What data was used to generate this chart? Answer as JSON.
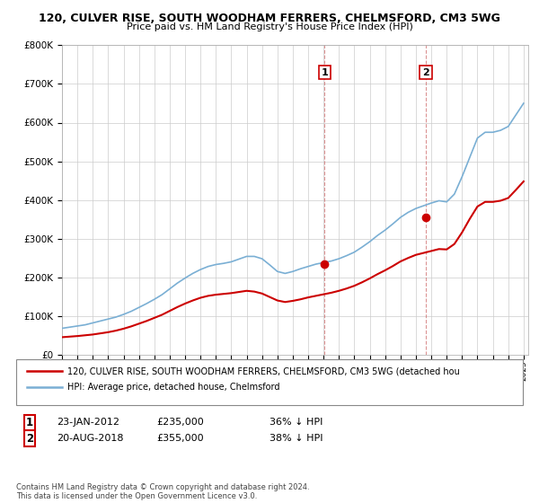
{
  "title": "120, CULVER RISE, SOUTH WOODHAM FERRERS, CHELMSFORD, CM3 5WG",
  "subtitle": "Price paid vs. HM Land Registry's House Price Index (HPI)",
  "legend_line1": "120, CULVER RISE, SOUTH WOODHAM FERRERS, CHELMSFORD, CM3 5WG (detached hou",
  "legend_line2": "HPI: Average price, detached house, Chelmsford",
  "annotation1_label": "1",
  "annotation1_date": "23-JAN-2012",
  "annotation1_price": "£235,000",
  "annotation1_hpi": "36% ↓ HPI",
  "annotation2_label": "2",
  "annotation2_date": "20-AUG-2018",
  "annotation2_price": "£355,000",
  "annotation2_hpi": "38% ↓ HPI",
  "footnote": "Contains HM Land Registry data © Crown copyright and database right 2024.\nThis data is licensed under the Open Government Licence v3.0.",
  "ylim": [
    0,
    800000
  ],
  "yticks": [
    0,
    100000,
    200000,
    300000,
    400000,
    500000,
    600000,
    700000,
    800000
  ],
  "bg_color": "#ffffff",
  "plot_bg_color": "#ffffff",
  "grid_color": "#cccccc",
  "red_color": "#cc0000",
  "blue_color": "#7aafd4",
  "hpi_years": [
    1995.0,
    1995.5,
    1996.0,
    1996.5,
    1997.0,
    1997.5,
    1998.0,
    1998.5,
    1999.0,
    1999.5,
    2000.0,
    2000.5,
    2001.0,
    2001.5,
    2002.0,
    2002.5,
    2003.0,
    2003.5,
    2004.0,
    2004.5,
    2005.0,
    2005.5,
    2006.0,
    2006.5,
    2007.0,
    2007.5,
    2008.0,
    2008.5,
    2009.0,
    2009.5,
    2010.0,
    2010.5,
    2011.0,
    2011.5,
    2012.0,
    2012.5,
    2013.0,
    2013.5,
    2014.0,
    2014.5,
    2015.0,
    2015.5,
    2016.0,
    2016.5,
    2017.0,
    2017.5,
    2018.0,
    2018.5,
    2019.0,
    2019.5,
    2020.0,
    2020.5,
    2021.0,
    2021.5,
    2022.0,
    2022.5,
    2023.0,
    2023.5,
    2024.0,
    2024.5,
    2025.0
  ],
  "hpi_values": [
    68000,
    71000,
    74000,
    77000,
    82000,
    87000,
    92000,
    97000,
    104000,
    112000,
    122000,
    132000,
    143000,
    155000,
    170000,
    185000,
    198000,
    210000,
    220000,
    228000,
    233000,
    236000,
    240000,
    247000,
    254000,
    254000,
    248000,
    232000,
    215000,
    210000,
    215000,
    222000,
    228000,
    234000,
    238000,
    242000,
    248000,
    256000,
    265000,
    278000,
    292000,
    308000,
    322000,
    338000,
    355000,
    368000,
    378000,
    385000,
    392000,
    398000,
    395000,
    415000,
    460000,
    510000,
    560000,
    575000,
    575000,
    580000,
    590000,
    620000,
    650000
  ],
  "price_years": [
    1995.0,
    1995.5,
    1996.0,
    1996.5,
    1997.0,
    1997.5,
    1998.0,
    1998.5,
    1999.0,
    1999.5,
    2000.0,
    2000.5,
    2001.0,
    2001.5,
    2002.0,
    2002.5,
    2003.0,
    2003.5,
    2004.0,
    2004.5,
    2005.0,
    2005.5,
    2006.0,
    2006.5,
    2007.0,
    2007.5,
    2008.0,
    2008.5,
    2009.0,
    2009.5,
    2010.0,
    2010.5,
    2011.0,
    2011.5,
    2012.0,
    2012.5,
    2013.0,
    2013.5,
    2014.0,
    2014.5,
    2015.0,
    2015.5,
    2016.0,
    2016.5,
    2017.0,
    2017.5,
    2018.0,
    2018.5,
    2019.0,
    2019.5,
    2020.0,
    2020.5,
    2021.0,
    2021.5,
    2022.0,
    2022.5,
    2023.0,
    2023.5,
    2024.0,
    2024.5,
    2025.0
  ],
  "price_values": [
    45000,
    46500,
    48000,
    50000,
    52000,
    55000,
    58000,
    62000,
    67000,
    73000,
    80000,
    87000,
    95000,
    103000,
    113000,
    123000,
    132000,
    140000,
    147000,
    152000,
    155000,
    157000,
    159000,
    162000,
    165000,
    163000,
    158000,
    149000,
    140000,
    136000,
    139000,
    143000,
    148000,
    152000,
    156000,
    160000,
    165000,
    171000,
    178000,
    187000,
    197000,
    208000,
    218000,
    229000,
    241000,
    250000,
    258000,
    263000,
    268000,
    273000,
    272000,
    286000,
    316000,
    351000,
    383000,
    395000,
    395000,
    398000,
    405000,
    426000,
    448000
  ],
  "sale1_x": 2012.06,
  "sale1_y": 235000,
  "sale2_x": 2018.64,
  "sale2_y": 355000,
  "xlim_left": 1995.0,
  "xlim_right": 2025.3
}
